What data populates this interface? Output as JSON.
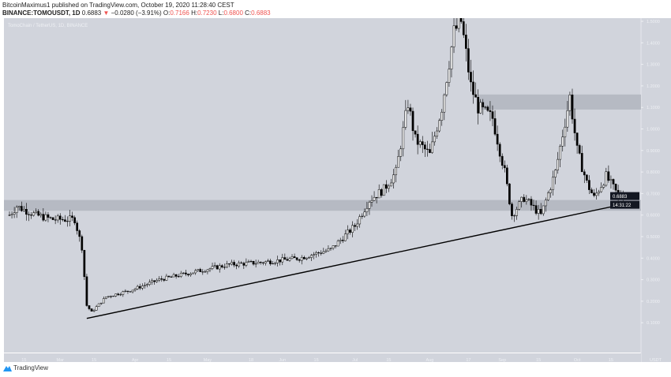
{
  "header": {
    "publisher": "BitcoinMaximus1 published on TradingView.com, October 19, 2020 11:28:40 CEST",
    "symbol": "BINANCE:TOMOUSDT, 1D",
    "last": "0.6883",
    "change": "−0.0280 (−3.91%)",
    "o_label": "O:",
    "o": "0.7166",
    "h_label": "H:",
    "h": "0.7230",
    "l_label": "L:",
    "l": "0.6800",
    "c_label": "C:",
    "c": "0.6883"
  },
  "footer": {
    "brand": "TradingView"
  },
  "colors": {
    "bg": "#d1d4dc",
    "candle": "#000000",
    "zone": "#b2b5be",
    "red": "#ef5350"
  },
  "chart_data": {
    "type": "candlestick",
    "title": "TomoChain / TetherUS, 1D, BINANCE",
    "ylabel": "USDT",
    "ylim": [
      0.08,
      1.63
    ],
    "y_ticks": [
      "1.5000",
      "1.4000",
      "1.3000",
      "1.2000",
      "1.1000",
      "1.0000",
      "0.9000",
      "0.8000",
      "0.7000",
      "0.6000",
      "0.5000",
      "0.4000",
      "0.3000",
      "0.2000",
      "0.1000"
    ],
    "x_ticks": [
      {
        "label": "15",
        "day": 6
      },
      {
        "label": "Mar",
        "day": 21
      },
      {
        "label": "15",
        "day": 35
      },
      {
        "label": "Apr",
        "day": 52
      },
      {
        "label": "15",
        "day": 66
      },
      {
        "label": "May",
        "day": 82
      },
      {
        "label": "18",
        "day": 100
      },
      {
        "label": "Jun",
        "day": 113
      },
      {
        "label": "15",
        "day": 127
      },
      {
        "label": "Jul",
        "day": 143
      },
      {
        "label": "15",
        "day": 157
      },
      {
        "label": "Aug",
        "day": 174
      },
      {
        "label": "17",
        "day": 190
      },
      {
        "label": "Sep",
        "day": 204
      },
      {
        "label": "15",
        "day": 219
      },
      {
        "label": "Oct",
        "day": 235
      },
      {
        "label": "15",
        "day": 249
      }
    ],
    "days": 254,
    "close_path": [
      [
        0,
        0.6
      ],
      [
        3,
        0.64
      ],
      [
        11,
        0.6
      ],
      [
        18,
        0.58
      ],
      [
        27,
        0.58
      ],
      [
        30,
        0.45
      ],
      [
        32,
        0.18
      ],
      [
        34,
        0.15
      ],
      [
        40,
        0.22
      ],
      [
        50,
        0.25
      ],
      [
        62,
        0.3
      ],
      [
        78,
        0.34
      ],
      [
        91,
        0.37
      ],
      [
        104,
        0.38
      ],
      [
        120,
        0.4
      ],
      [
        133,
        0.44
      ],
      [
        143,
        0.55
      ],
      [
        149,
        0.67
      ],
      [
        155,
        0.72
      ],
      [
        160,
        0.8
      ],
      [
        165,
        1.12
      ],
      [
        168,
        0.95
      ],
      [
        174,
        0.88
      ],
      [
        179,
        1.1
      ],
      [
        184,
        1.45
      ],
      [
        187,
        1.5
      ],
      [
        191,
        1.2
      ],
      [
        194,
        1.1
      ],
      [
        200,
        1.05
      ],
      [
        205,
        0.8
      ],
      [
        208,
        0.6
      ],
      [
        213,
        0.68
      ],
      [
        220,
        0.6
      ],
      [
        226,
        0.8
      ],
      [
        232,
        1.15
      ],
      [
        235,
        0.9
      ],
      [
        239,
        0.75
      ],
      [
        242,
        0.68
      ],
      [
        247,
        0.78
      ],
      [
        252,
        0.69
      ]
    ],
    "zones": [
      {
        "from": 0.62,
        "to": 0.67,
        "start_day": 0
      },
      {
        "from": 1.09,
        "to": 1.16,
        "start_day": 194
      }
    ],
    "trendline": {
      "start": [
        32,
        0.12
      ],
      "end": [
        256,
        0.655
      ]
    },
    "last_price_label": "0.6883",
    "countdown_label": "14:31:22"
  }
}
